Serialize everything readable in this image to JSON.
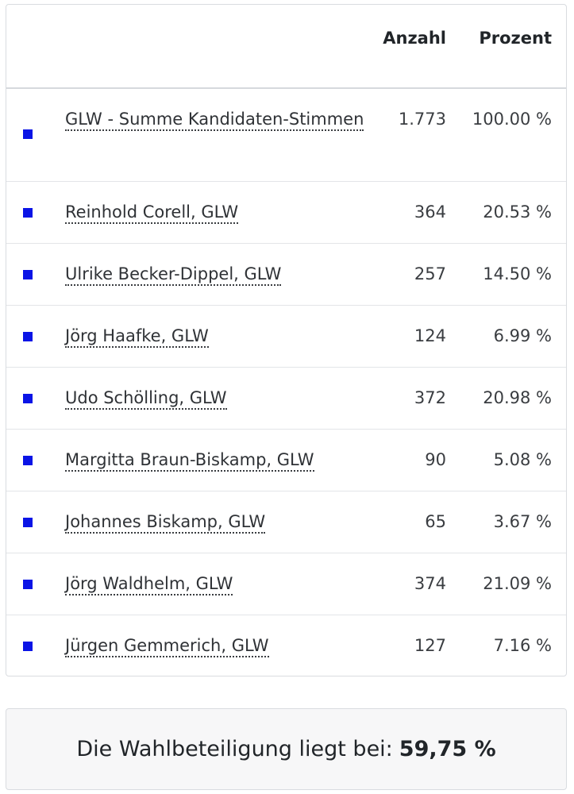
{
  "table": {
    "header": {
      "marker": "",
      "name": "",
      "count": "Anzahl",
      "percent": "Prozent"
    },
    "colors": {
      "marker": "#0a14e6"
    },
    "rows": [
      {
        "name": "GLW - Summe Kandidaten-Stimmen",
        "count": "1.773",
        "percent": "100.00 %"
      },
      {
        "name": "Reinhold Corell, GLW",
        "count": "364",
        "percent": "20.53 %"
      },
      {
        "name": "Ulrike Becker-Dippel, GLW",
        "count": "257",
        "percent": "14.50 %"
      },
      {
        "name": "Jörg Haafke, GLW",
        "count": "124",
        "percent": "6.99 %"
      },
      {
        "name": "Udo Schölling, GLW",
        "count": "372",
        "percent": "20.98 %"
      },
      {
        "name": "Margitta Braun-Biskamp, GLW",
        "count": "90",
        "percent": "5.08 %"
      },
      {
        "name": "Johannes Biskamp, GLW",
        "count": "65",
        "percent": "3.67 %"
      },
      {
        "name": "Jörg Waldhelm, GLW",
        "count": "374",
        "percent": "21.09 %"
      },
      {
        "name": "Jürgen Gemmerich, GLW",
        "count": "127",
        "percent": "7.16 %"
      }
    ]
  },
  "turnout": {
    "label": "Die Wahlbeteiligung liegt bei:",
    "value": "59,75 %"
  }
}
